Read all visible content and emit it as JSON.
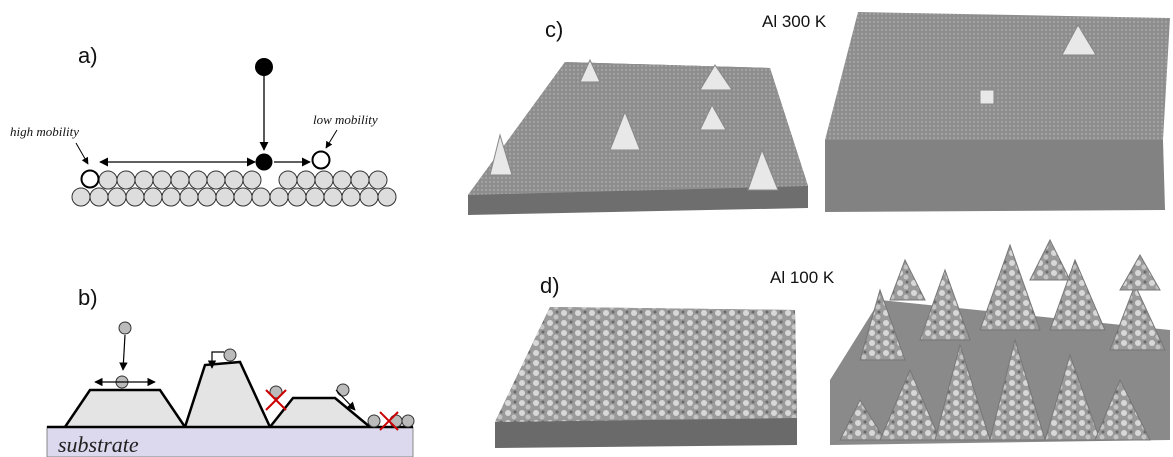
{
  "panels": {
    "a": {
      "label": "a)",
      "left_note": "high mobility",
      "right_note": "low mobility"
    },
    "b": {
      "label": "b)",
      "substrate": "substrate"
    },
    "c": {
      "label": "c)",
      "caption": "Al 300 K"
    },
    "d": {
      "label": "d)",
      "caption": "Al 100 K"
    }
  }
}
